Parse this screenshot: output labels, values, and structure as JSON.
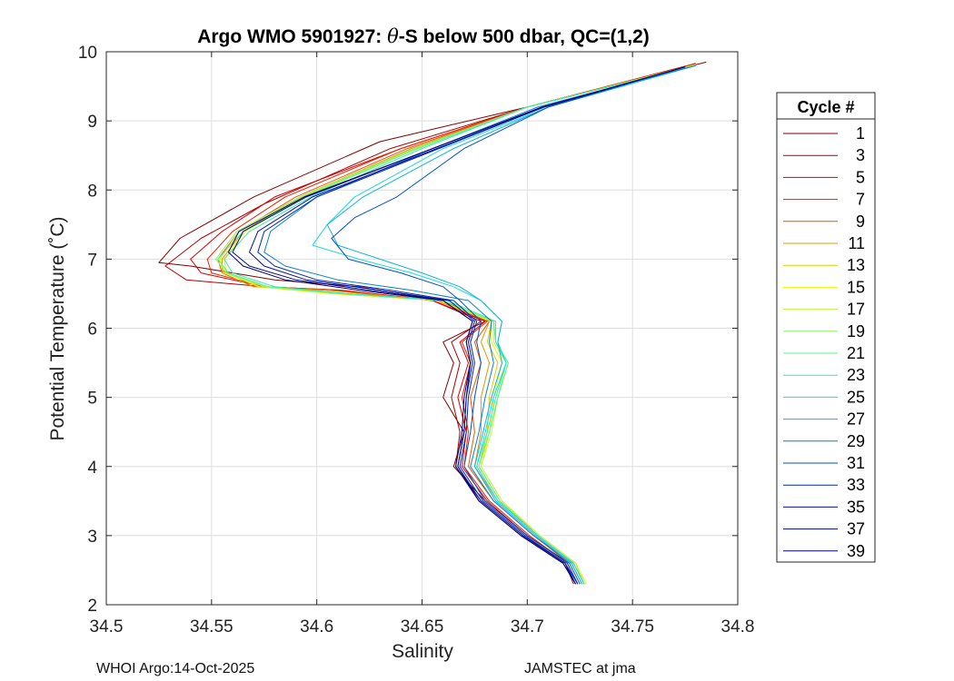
{
  "chart_data": {
    "type": "line",
    "title_pre": "Argo WMO 5901927: ",
    "title_theta": "θ",
    "title_post": "-S below 500 dbar,  QC=(1,2)",
    "xlabel": "Salinity",
    "ylabel": "Potential Temperature (˚C)",
    "xlim": [
      34.5,
      34.8
    ],
    "ylim": [
      2,
      10
    ],
    "xticks": [
      34.5,
      34.55,
      34.6,
      34.65,
      34.7,
      34.75,
      34.8
    ],
    "xtick_labels": [
      "34.5",
      "34.55",
      "34.6",
      "34.65",
      "34.7",
      "34.75",
      "34.8"
    ],
    "yticks": [
      2,
      3,
      4,
      5,
      6,
      7,
      8,
      9,
      10
    ],
    "ytick_labels": [
      "2",
      "3",
      "4",
      "5",
      "6",
      "7",
      "8",
      "9",
      "10"
    ],
    "grid": true,
    "legend_title": "Cycle #",
    "legend_position": "right-outside",
    "legend_entries": [
      {
        "label": "1",
        "color": "#800000"
      },
      {
        "label": "3",
        "color": "#b00000"
      },
      {
        "label": "5",
        "color": "#d40000"
      },
      {
        "label": "7",
        "color": "#e82000"
      },
      {
        "label": "9",
        "color": "#ee5500"
      },
      {
        "label": "11",
        "color": "#e69500"
      },
      {
        "label": "13",
        "color": "#e6c800"
      },
      {
        "label": "15",
        "color": "#f2f200"
      },
      {
        "label": "17",
        "color": "#c3f23c"
      },
      {
        "label": "19",
        "color": "#8ef266"
      },
      {
        "label": "21",
        "color": "#5af28c"
      },
      {
        "label": "23",
        "color": "#38e6b4"
      },
      {
        "label": "25",
        "color": "#1ed8e0"
      },
      {
        "label": "27",
        "color": "#12b2d8"
      },
      {
        "label": "29",
        "color": "#0a82c8"
      },
      {
        "label": "31",
        "color": "#0050c8"
      },
      {
        "label": "33",
        "color": "#0028b4"
      },
      {
        "label": "35",
        "color": "#0010a0"
      },
      {
        "label": "37",
        "color": "#000a8c"
      },
      {
        "label": "39",
        "color": "#000078"
      }
    ],
    "series": [
      {
        "name": "1",
        "x": [
          34.725,
          34.72,
          34.7,
          34.68,
          34.665,
          34.67,
          34.66,
          34.665,
          34.66,
          34.68,
          34.66,
          34.62,
          34.58,
          34.54,
          34.525,
          34.535,
          34.57,
          34.63,
          34.7,
          34.785
        ],
        "y": [
          2.3,
          2.6,
          3.0,
          3.5,
          4.0,
          4.5,
          5.0,
          5.5,
          5.8,
          6.1,
          6.4,
          6.6,
          6.7,
          6.9,
          6.95,
          7.3,
          7.9,
          8.7,
          9.2,
          9.85
        ]
      },
      {
        "name": "3",
        "x": [
          34.722,
          34.718,
          34.698,
          34.678,
          34.666,
          34.668,
          34.664,
          34.668,
          34.664,
          34.678,
          34.655,
          34.61,
          34.575,
          34.538,
          34.528,
          34.545,
          34.575,
          34.635,
          34.7,
          34.78
        ],
        "y": [
          2.3,
          2.6,
          3.0,
          3.5,
          4.0,
          4.5,
          5.0,
          5.5,
          5.8,
          6.1,
          6.4,
          6.55,
          6.6,
          6.7,
          6.9,
          7.3,
          7.8,
          8.6,
          9.2,
          9.83
        ]
      },
      {
        "name": "5",
        "x": [
          34.724,
          34.719,
          34.7,
          34.681,
          34.669,
          34.671,
          34.667,
          34.672,
          34.668,
          34.68,
          34.655,
          34.61,
          34.575,
          34.545,
          34.54,
          34.555,
          34.58,
          34.64,
          34.7,
          34.78
        ],
        "y": [
          2.3,
          2.6,
          3.0,
          3.5,
          4.0,
          4.5,
          5.0,
          5.5,
          5.8,
          6.1,
          6.4,
          6.55,
          6.6,
          6.8,
          7.0,
          7.4,
          7.9,
          8.6,
          9.2,
          9.83
        ]
      },
      {
        "name": "7",
        "x": [
          34.724,
          34.719,
          34.701,
          34.682,
          34.67,
          34.672,
          34.669,
          34.673,
          34.669,
          34.681,
          34.657,
          34.612,
          34.575,
          34.55,
          34.548,
          34.56,
          34.585,
          34.64,
          34.7,
          34.78
        ],
        "y": [
          2.3,
          2.6,
          3.0,
          3.5,
          4.0,
          4.5,
          5.0,
          5.5,
          5.8,
          6.1,
          6.4,
          6.55,
          6.6,
          6.8,
          7.0,
          7.4,
          7.9,
          8.6,
          9.2,
          9.82
        ]
      },
      {
        "name": "9",
        "x": [
          34.726,
          34.721,
          34.703,
          34.684,
          34.672,
          34.675,
          34.673,
          34.678,
          34.675,
          34.682,
          34.657,
          34.605,
          34.57,
          34.555,
          34.553,
          34.563,
          34.59,
          34.643,
          34.7,
          34.78
        ],
        "y": [
          2.3,
          2.6,
          3.0,
          3.5,
          4.0,
          4.5,
          5.0,
          5.5,
          5.8,
          6.1,
          6.4,
          6.55,
          6.6,
          6.8,
          7.0,
          7.4,
          7.9,
          8.6,
          9.2,
          9.82
        ]
      },
      {
        "name": "11",
        "x": [
          34.727,
          34.722,
          34.705,
          34.686,
          34.675,
          34.678,
          34.678,
          34.682,
          34.678,
          34.682,
          34.657,
          34.605,
          34.57,
          34.555,
          34.555,
          34.565,
          34.592,
          34.645,
          34.7,
          34.78
        ],
        "y": [
          2.3,
          2.6,
          3.0,
          3.5,
          4.0,
          4.5,
          5.0,
          5.5,
          5.8,
          6.1,
          6.4,
          6.55,
          6.6,
          6.8,
          7.0,
          7.4,
          7.9,
          8.6,
          9.2,
          9.82
        ]
      },
      {
        "name": "13",
        "x": [
          34.727,
          34.723,
          34.706,
          34.687,
          34.677,
          34.681,
          34.682,
          34.686,
          34.681,
          34.683,
          34.658,
          34.607,
          34.572,
          34.557,
          34.556,
          34.566,
          34.593,
          34.646,
          34.7,
          34.78
        ],
        "y": [
          2.3,
          2.6,
          3.0,
          3.5,
          4.0,
          4.5,
          5.0,
          5.5,
          5.8,
          6.1,
          6.4,
          6.5,
          6.6,
          6.8,
          7.0,
          7.4,
          7.9,
          8.6,
          9.2,
          9.81
        ]
      },
      {
        "name": "15",
        "x": [
          34.728,
          34.723,
          34.706,
          34.688,
          34.678,
          34.682,
          34.684,
          34.688,
          34.683,
          34.683,
          34.658,
          34.607,
          34.573,
          34.557,
          34.556,
          34.566,
          34.594,
          34.647,
          34.7,
          34.78
        ],
        "y": [
          2.3,
          2.6,
          3.0,
          3.5,
          4.0,
          4.5,
          5.0,
          5.5,
          5.8,
          6.1,
          6.4,
          6.5,
          6.6,
          6.8,
          7.0,
          7.4,
          7.9,
          8.6,
          9.2,
          9.81
        ]
      },
      {
        "name": "17",
        "x": [
          34.727,
          34.723,
          34.706,
          34.688,
          34.678,
          34.683,
          34.686,
          34.69,
          34.684,
          34.684,
          34.66,
          34.61,
          34.575,
          34.556,
          34.554,
          34.563,
          34.593,
          34.647,
          34.7,
          34.78
        ],
        "y": [
          2.3,
          2.6,
          3.0,
          3.5,
          4.0,
          4.5,
          5.0,
          5.5,
          5.8,
          6.1,
          6.4,
          6.5,
          6.6,
          6.8,
          7.0,
          7.4,
          7.9,
          8.6,
          9.2,
          9.81
        ]
      },
      {
        "name": "19",
        "x": [
          34.727,
          34.722,
          34.705,
          34.687,
          34.677,
          34.682,
          34.686,
          34.691,
          34.685,
          34.684,
          34.66,
          34.612,
          34.576,
          34.557,
          34.552,
          34.562,
          34.592,
          34.646,
          34.7,
          34.78
        ],
        "y": [
          2.3,
          2.6,
          3.0,
          3.5,
          4.0,
          4.5,
          5.0,
          5.5,
          5.8,
          6.1,
          6.4,
          6.5,
          6.6,
          6.8,
          7.0,
          7.4,
          7.9,
          8.6,
          9.2,
          9.8
        ]
      },
      {
        "name": "21",
        "x": [
          34.727,
          34.722,
          34.705,
          34.687,
          34.677,
          34.682,
          34.686,
          34.691,
          34.685,
          34.684,
          34.66,
          34.612,
          34.577,
          34.558,
          34.553,
          34.565,
          34.594,
          34.648,
          34.7,
          34.78
        ],
        "y": [
          2.3,
          2.6,
          3.0,
          3.5,
          4.0,
          4.5,
          5.0,
          5.5,
          5.8,
          6.1,
          6.4,
          6.5,
          6.6,
          6.8,
          7.0,
          7.4,
          7.9,
          8.6,
          9.2,
          9.8
        ]
      },
      {
        "name": "23",
        "x": [
          34.727,
          34.722,
          34.705,
          34.686,
          34.676,
          34.681,
          34.685,
          34.69,
          34.685,
          34.685,
          34.662,
          34.615,
          34.58,
          34.56,
          34.556,
          34.568,
          34.597,
          34.65,
          34.7,
          34.78
        ],
        "y": [
          2.3,
          2.6,
          3.0,
          3.5,
          4.0,
          4.5,
          5.0,
          5.5,
          5.8,
          6.1,
          6.4,
          6.5,
          6.6,
          6.8,
          7.0,
          7.4,
          7.9,
          8.6,
          9.2,
          9.8
        ]
      },
      {
        "name": "25",
        "x": [
          34.727,
          34.722,
          34.705,
          34.686,
          34.676,
          34.68,
          34.684,
          34.69,
          34.686,
          34.688,
          34.678,
          34.665,
          34.645,
          34.62,
          34.598,
          34.605,
          34.618,
          34.66,
          34.71,
          34.78
        ],
        "y": [
          2.3,
          2.6,
          3.0,
          3.5,
          4.0,
          4.5,
          5.0,
          5.5,
          5.8,
          6.1,
          6.4,
          6.6,
          6.8,
          7.0,
          7.2,
          7.5,
          7.9,
          8.6,
          9.2,
          9.8
        ]
      },
      {
        "name": "27",
        "x": [
          34.726,
          34.721,
          34.704,
          34.685,
          34.675,
          34.679,
          34.683,
          34.688,
          34.686,
          34.688,
          34.678,
          34.668,
          34.65,
          34.63,
          34.61,
          34.605,
          34.622,
          34.665,
          34.71,
          34.78
        ],
        "y": [
          2.3,
          2.6,
          3.0,
          3.5,
          4.0,
          4.5,
          5.0,
          5.5,
          5.8,
          6.1,
          6.4,
          6.6,
          6.8,
          7.0,
          7.2,
          7.5,
          7.9,
          8.6,
          9.2,
          9.8
        ]
      },
      {
        "name": "29",
        "x": [
          34.725,
          34.72,
          34.703,
          34.684,
          34.673,
          34.677,
          34.68,
          34.684,
          34.682,
          34.683,
          34.672,
          34.645,
          34.61,
          34.585,
          34.575,
          34.578,
          34.6,
          34.655,
          34.705,
          34.78
        ],
        "y": [
          2.3,
          2.6,
          3.0,
          3.5,
          4.0,
          4.5,
          5.0,
          5.5,
          5.8,
          6.1,
          6.4,
          6.55,
          6.7,
          6.9,
          7.1,
          7.4,
          7.9,
          8.6,
          9.2,
          9.8
        ]
      },
      {
        "name": "31",
        "x": [
          34.724,
          34.719,
          34.7,
          34.68,
          34.67,
          34.673,
          34.675,
          34.678,
          34.676,
          34.678,
          34.668,
          34.66,
          34.64,
          34.615,
          34.607,
          34.618,
          34.638,
          34.67,
          34.71,
          34.775
        ],
        "y": [
          2.3,
          2.6,
          3.0,
          3.5,
          4.0,
          4.5,
          5.0,
          5.5,
          5.8,
          6.1,
          6.4,
          6.6,
          6.8,
          7.0,
          7.3,
          7.6,
          7.9,
          8.6,
          9.2,
          9.78
        ]
      },
      {
        "name": "33",
        "x": [
          34.724,
          34.718,
          34.699,
          34.679,
          34.668,
          34.671,
          34.672,
          34.675,
          34.673,
          34.676,
          34.665,
          34.635,
          34.6,
          34.58,
          34.572,
          34.575,
          34.6,
          34.658,
          34.708,
          34.775
        ],
        "y": [
          2.3,
          2.6,
          3.0,
          3.5,
          4.0,
          4.5,
          5.0,
          5.5,
          5.8,
          6.1,
          6.4,
          6.55,
          6.7,
          6.9,
          7.1,
          7.4,
          7.9,
          8.6,
          9.2,
          9.78
        ]
      },
      {
        "name": "35",
        "x": [
          34.723,
          34.718,
          34.698,
          34.678,
          34.667,
          34.67,
          34.671,
          34.674,
          34.672,
          34.675,
          34.663,
          34.63,
          34.595,
          34.575,
          34.568,
          34.572,
          34.598,
          34.657,
          34.708,
          34.775
        ],
        "y": [
          2.3,
          2.6,
          3.0,
          3.5,
          4.0,
          4.5,
          5.0,
          5.5,
          5.8,
          6.1,
          6.4,
          6.55,
          6.7,
          6.9,
          7.1,
          7.4,
          7.9,
          8.6,
          9.2,
          9.78
        ]
      },
      {
        "name": "37",
        "x": [
          34.723,
          34.717,
          34.697,
          34.677,
          34.667,
          34.67,
          34.671,
          34.673,
          34.671,
          34.674,
          34.66,
          34.625,
          34.59,
          34.568,
          34.56,
          34.565,
          34.595,
          34.655,
          34.707,
          34.775
        ],
        "y": [
          2.3,
          2.6,
          3.0,
          3.5,
          4.0,
          4.5,
          5.0,
          5.5,
          5.8,
          6.1,
          6.4,
          6.55,
          6.7,
          6.9,
          7.1,
          7.4,
          7.9,
          8.6,
          9.2,
          9.78
        ]
      },
      {
        "name": "39",
        "x": [
          34.723,
          34.717,
          34.697,
          34.677,
          34.666,
          34.669,
          34.67,
          34.673,
          34.671,
          34.674,
          34.66,
          34.62,
          34.585,
          34.565,
          34.558,
          34.563,
          34.594,
          34.655,
          34.707,
          34.775
        ],
        "y": [
          2.3,
          2.6,
          3.0,
          3.5,
          4.0,
          4.5,
          5.0,
          5.5,
          5.8,
          6.1,
          6.4,
          6.55,
          6.7,
          6.9,
          7.1,
          7.4,
          7.9,
          8.6,
          9.2,
          9.78
        ]
      }
    ]
  },
  "footer": {
    "left": "WHOI Argo:14-Oct-2025",
    "right": "JAMSTEC at jma"
  }
}
